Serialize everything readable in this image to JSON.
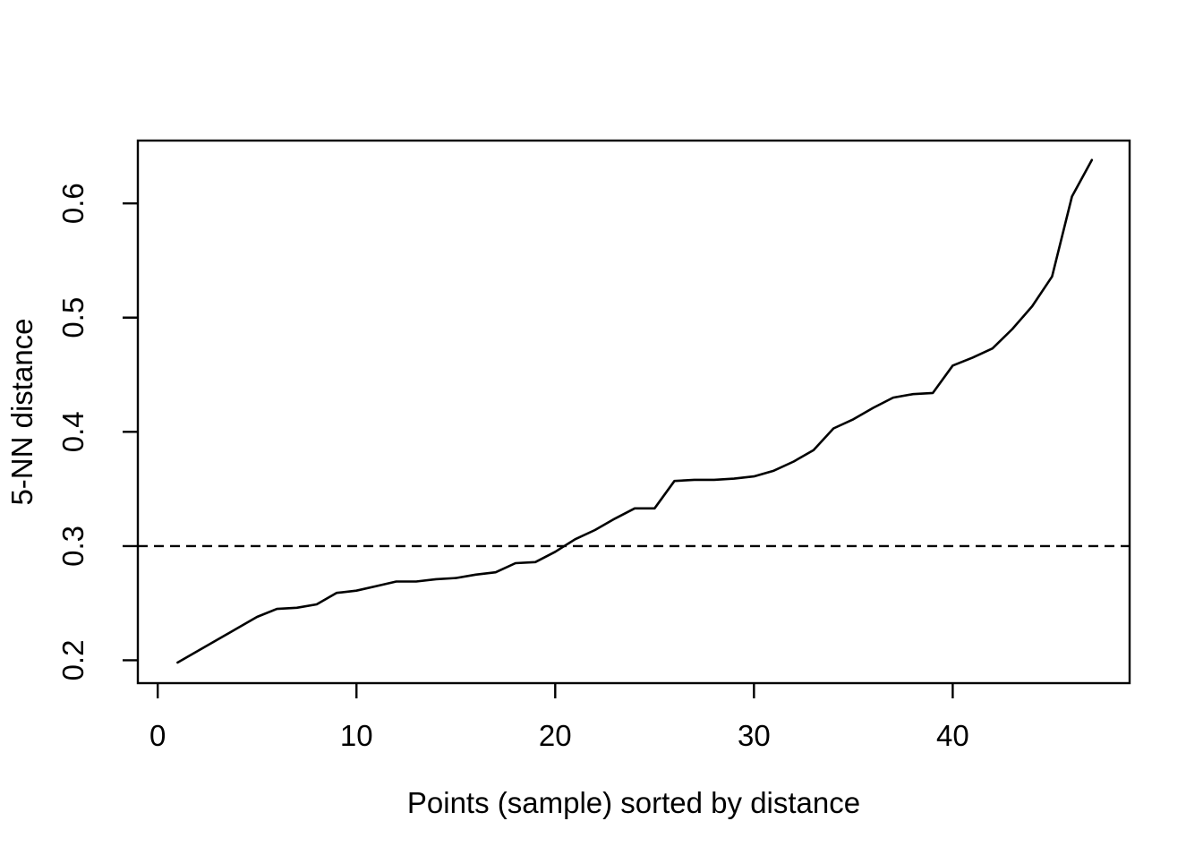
{
  "chart_data": {
    "type": "line",
    "title": "",
    "xlabel": "Points (sample) sorted by distance",
    "ylabel": "5-NN distance",
    "x": [
      1,
      2,
      3,
      4,
      5,
      6,
      7,
      8,
      9,
      10,
      11,
      12,
      13,
      14,
      15,
      16,
      17,
      18,
      19,
      20,
      21,
      22,
      23,
      24,
      25,
      26,
      27,
      28,
      29,
      30,
      31,
      32,
      33,
      34,
      35,
      36,
      37,
      38,
      39,
      40,
      41,
      42,
      43,
      44,
      45,
      46,
      47
    ],
    "values": [
      0.198,
      0.208,
      0.218,
      0.228,
      0.238,
      0.245,
      0.246,
      0.249,
      0.259,
      0.261,
      0.265,
      0.269,
      0.269,
      0.271,
      0.272,
      0.275,
      0.277,
      0.285,
      0.286,
      0.295,
      0.306,
      0.314,
      0.324,
      0.333,
      0.333,
      0.357,
      0.358,
      0.358,
      0.359,
      0.361,
      0.366,
      0.374,
      0.384,
      0.403,
      0.411,
      0.421,
      0.43,
      0.433,
      0.434,
      0.458,
      0.465,
      0.473,
      0.49,
      0.51,
      0.536,
      0.606,
      0.638
    ],
    "x_ticks": [
      0,
      10,
      20,
      30,
      40
    ],
    "x_tick_labels": [
      "0",
      "10",
      "20",
      "30",
      "40"
    ],
    "y_ticks": [
      0.2,
      0.3,
      0.4,
      0.5,
      0.6
    ],
    "y_tick_labels": [
      "0.2",
      "0.3",
      "0.4",
      "0.5",
      "0.6"
    ],
    "xlim": [
      -1.0,
      48.9
    ],
    "ylim": [
      0.18,
      0.655
    ],
    "hline": {
      "y": 0.3,
      "style": "dashed"
    },
    "line_color": "#000000",
    "axis_color": "#000000",
    "background": "#ffffff",
    "grid": false,
    "legend": null
  }
}
